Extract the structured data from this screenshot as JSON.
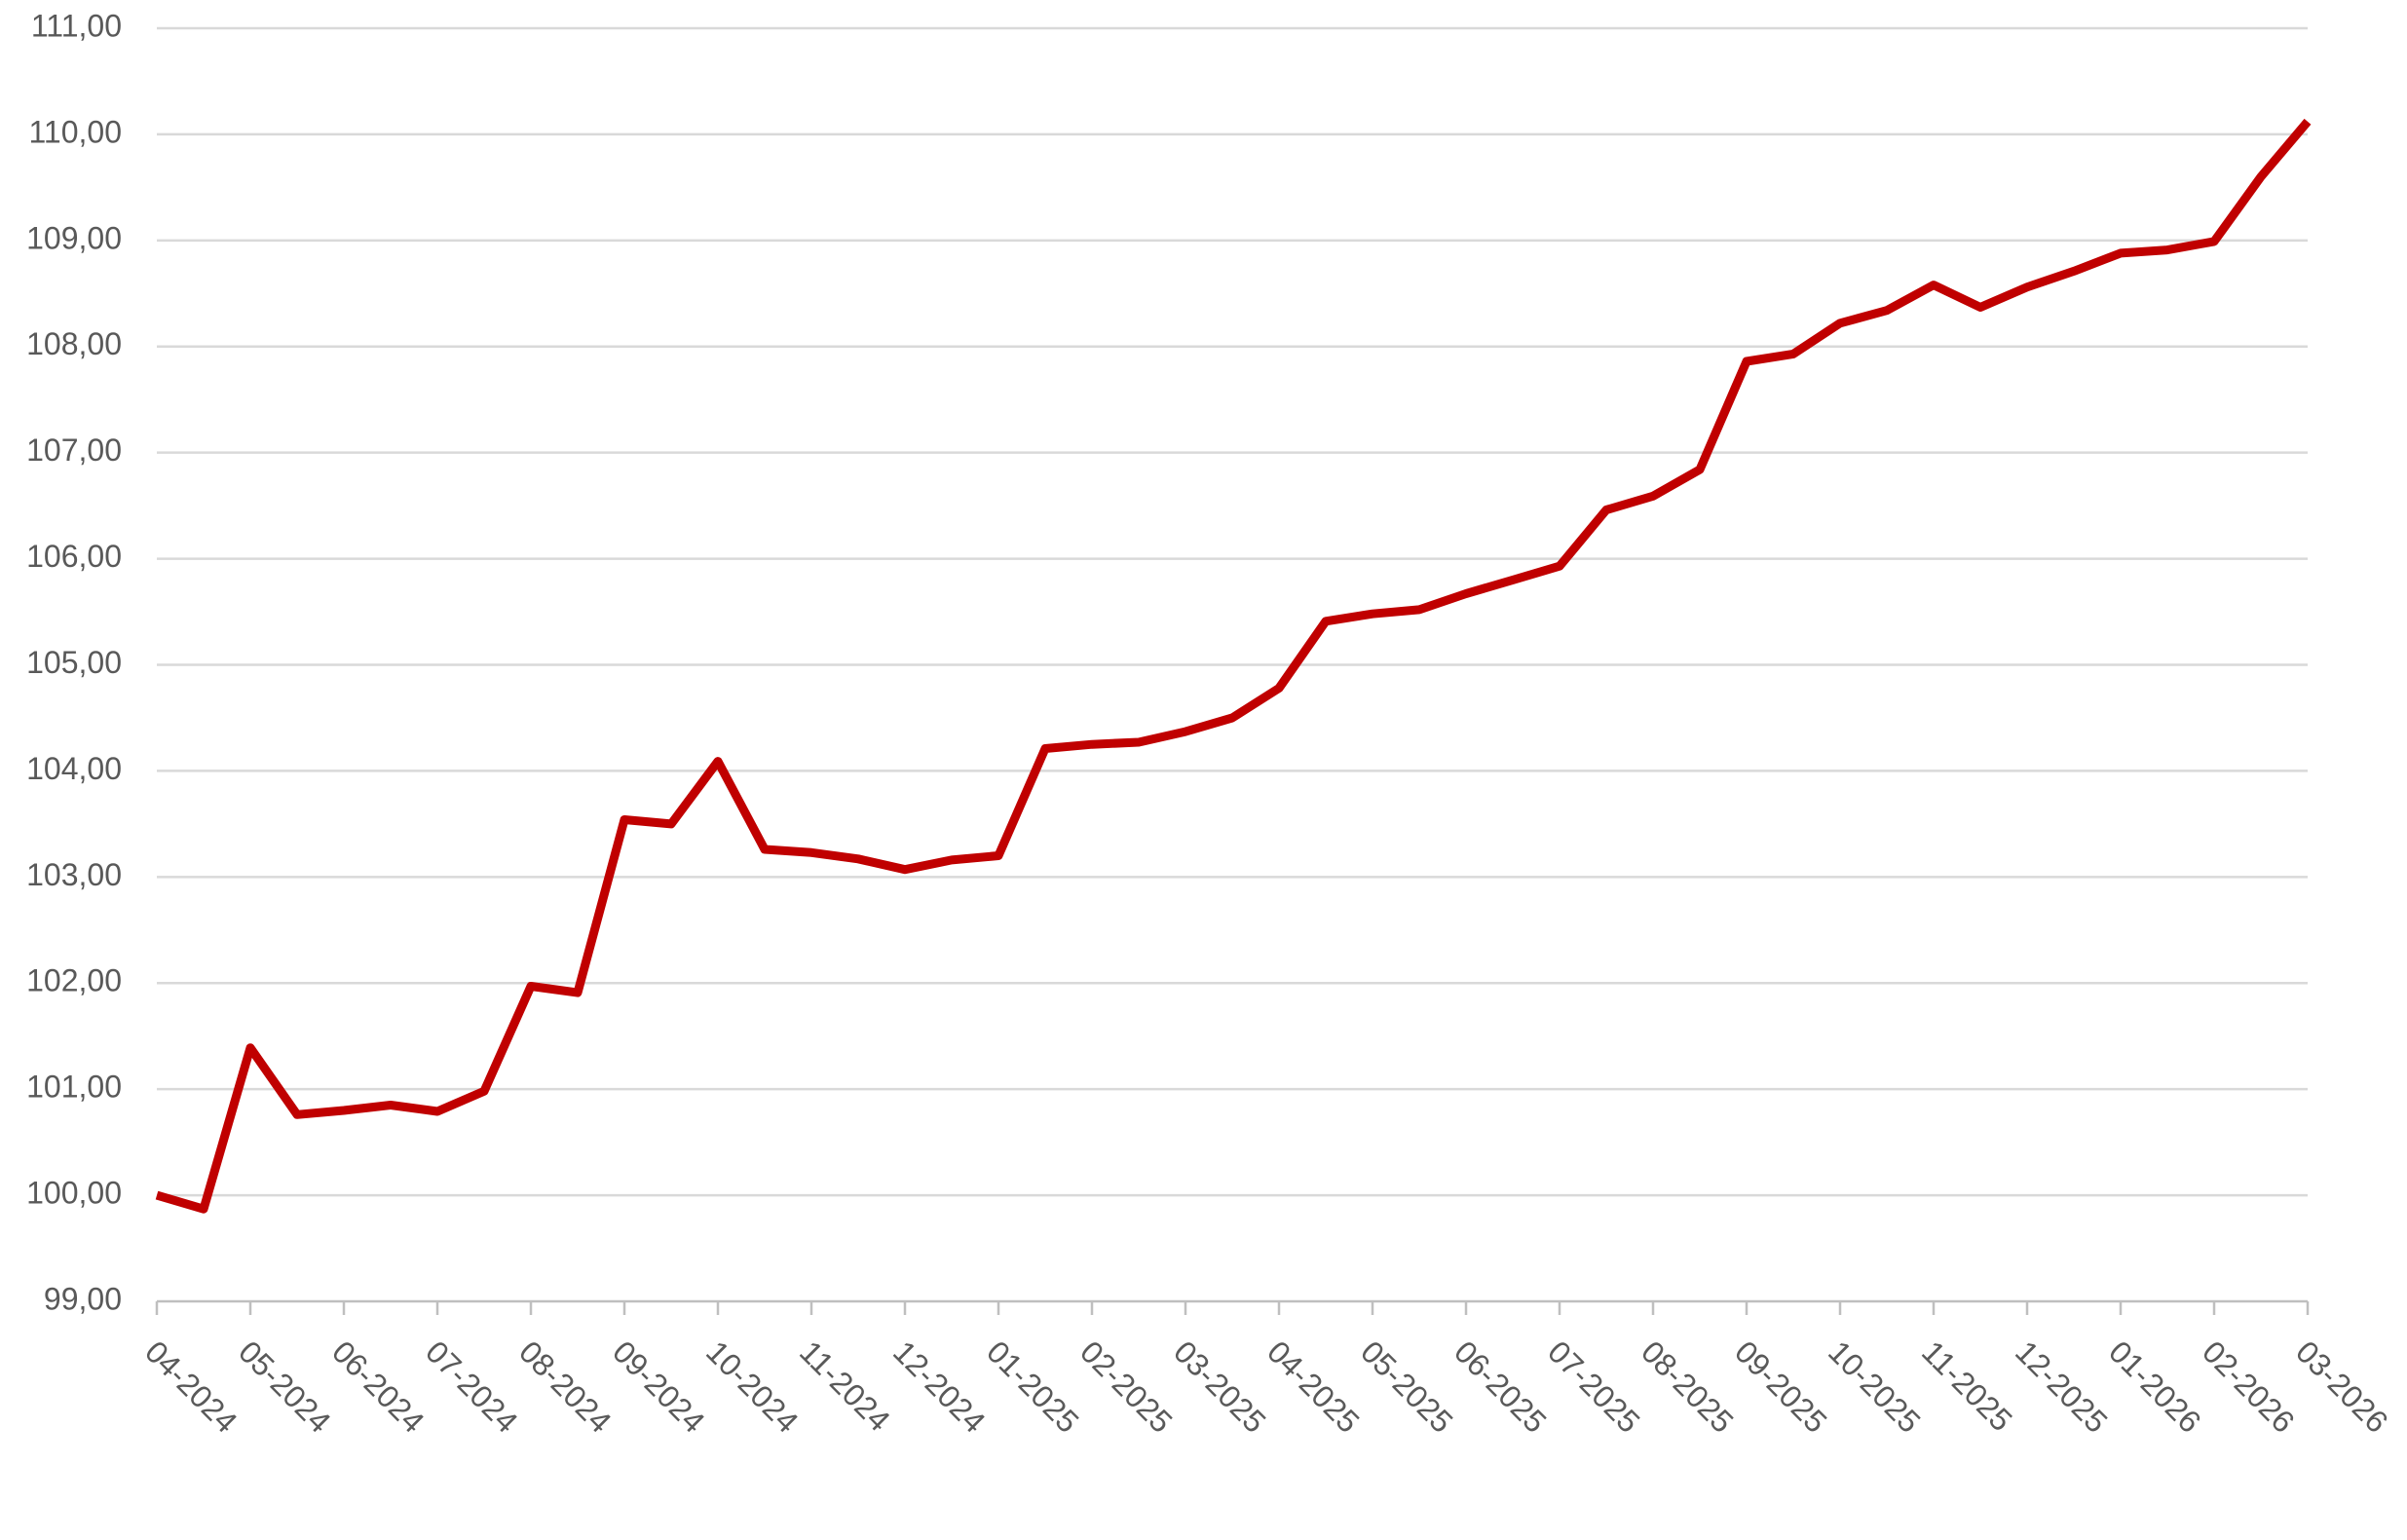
{
  "chart_data": {
    "type": "line",
    "categories": [
      "04-2024",
      null,
      "05-2024",
      null,
      "06-2024",
      null,
      "07-2024",
      null,
      "08-2024",
      null,
      "09-2024",
      null,
      "10-2024",
      null,
      "11-2024",
      null,
      "12-2024",
      null,
      "01-2025",
      null,
      "02-2025",
      null,
      "03-2025",
      null,
      "04-2025",
      null,
      "05-2025",
      null,
      "06-2025",
      null,
      "07-2025",
      null,
      "08-2025",
      null,
      "09-2025",
      null,
      "10-2025",
      null,
      "11-2025",
      null,
      "12-2025",
      null,
      "01-2026",
      null,
      "02-2026",
      null,
      "03-2026"
    ],
    "series": [
      {
        "color": "#c00000",
        "values": [
          100.0,
          99.87,
          101.39,
          100.76,
          100.8,
          100.85,
          100.79,
          100.98,
          101.97,
          101.91,
          103.54,
          103.5,
          104.09,
          103.26,
          103.23,
          103.17,
          103.07,
          103.16,
          103.2,
          104.21,
          104.25,
          104.27,
          104.37,
          104.5,
          104.78,
          105.41,
          105.48,
          105.52,
          105.67,
          105.8,
          105.93,
          106.46,
          106.59,
          106.84,
          107.86,
          107.93,
          108.22,
          108.34,
          108.58,
          108.37,
          108.56,
          108.71,
          108.88,
          108.91,
          108.99,
          109.6,
          110.12
        ]
      }
    ],
    "ylim": [
      99,
      111
    ],
    "yticks": [
      {
        "value": 99,
        "label": "99,00"
      },
      {
        "value": 100,
        "label": "100,00"
      },
      {
        "value": 101,
        "label": "101,00"
      },
      {
        "value": 102,
        "label": "102,00"
      },
      {
        "value": 103,
        "label": "103,00"
      },
      {
        "value": 104,
        "label": "104,00"
      },
      {
        "value": 105,
        "label": "105,00"
      },
      {
        "value": 106,
        "label": "106,00"
      },
      {
        "value": 107,
        "label": "107,00"
      },
      {
        "value": 108,
        "label": "108,00"
      },
      {
        "value": 109,
        "label": "109,00"
      },
      {
        "value": 110,
        "label": "110,00"
      },
      {
        "value": 111,
        "label": "111,00"
      }
    ],
    "grid": true
  }
}
